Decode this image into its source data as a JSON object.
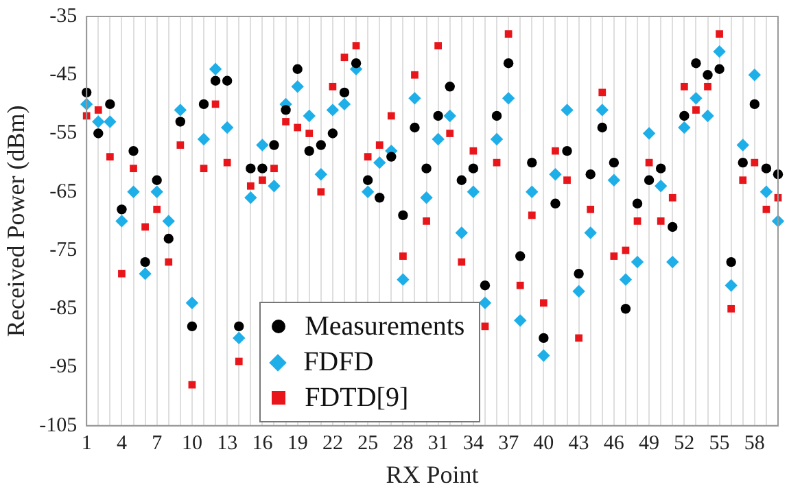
{
  "chart_data": {
    "type": "scatter",
    "xlabel": "RX Point",
    "ylabel": "Received Power (dBm)",
    "x": [
      1,
      2,
      3,
      4,
      5,
      6,
      7,
      8,
      9,
      10,
      11,
      12,
      13,
      14,
      15,
      16,
      17,
      18,
      19,
      20,
      21,
      22,
      23,
      24,
      25,
      26,
      27,
      28,
      29,
      30,
      31,
      32,
      33,
      34,
      35,
      36,
      37,
      38,
      39,
      40,
      41,
      42,
      43,
      44,
      45,
      46,
      47,
      48,
      49,
      50,
      51,
      52,
      53,
      54,
      55,
      56,
      57,
      58,
      59,
      60
    ],
    "series": [
      {
        "name": "Measurements",
        "color": "#000000",
        "marker": "circle",
        "values": [
          -48,
          -55,
          -50,
          -68,
          -58,
          -77,
          -63,
          -73,
          -53,
          -88,
          -50,
          -46,
          -46,
          -88,
          -61,
          -61,
          -57,
          -51,
          -44,
          -58,
          -57,
          -55,
          -48,
          -43,
          -63,
          -66,
          -59,
          -69,
          -54,
          -61,
          -52,
          -47,
          -63,
          -61,
          -81,
          -52,
          -43,
          -76,
          -60,
          -90,
          -67,
          -58,
          -79,
          -62,
          -54,
          -60,
          -85,
          -67,
          -63,
          -61,
          -71,
          -52,
          -43,
          -45,
          -44,
          -77,
          -60,
          -50,
          -61,
          -62
        ]
      },
      {
        "name": "FDFD",
        "color": "#1eaee8",
        "marker": "diamond",
        "values": [
          -50,
          -53,
          -53,
          -70,
          -65,
          -79,
          -65,
          -70,
          -51,
          -84,
          -56,
          -44,
          -54,
          -90,
          -66,
          -57,
          -64,
          -50,
          -47,
          -52,
          -62,
          -51,
          -50,
          -44,
          -65,
          -60,
          -58,
          -80,
          -49,
          -66,
          -56,
          -52,
          -72,
          -65,
          -84,
          -56,
          -49,
          -87,
          -65,
          -93,
          -62,
          -51,
          -82,
          -72,
          -51,
          -63,
          -80,
          -77,
          -55,
          -64,
          -77,
          -54,
          -49,
          -52,
          -41,
          -81,
          -57,
          -45,
          -65,
          -70
        ]
      },
      {
        "name": "FDTD[9]",
        "color": "#e8161b",
        "marker": "square",
        "values": [
          -52,
          -51,
          -59,
          -79,
          -61,
          -71,
          -68,
          -77,
          -57,
          -98,
          -61,
          -50,
          -60,
          -94,
          -64,
          -63,
          -61,
          -53,
          -54,
          -55,
          -65,
          -47,
          -42,
          -40,
          -59,
          -57,
          -52,
          -76,
          -45,
          -70,
          -40,
          -55,
          -77,
          -58,
          -88,
          -60,
          -38,
          -81,
          -69,
          -84,
          -58,
          -63,
          -90,
          -68,
          -48,
          -76,
          -75,
          -70,
          -60,
          -70,
          -66,
          -47,
          -51,
          -47,
          -38,
          -85,
          -63,
          -60,
          -68,
          -66
        ]
      }
    ],
    "xlim": [
      1,
      60
    ],
    "xticks": [
      1,
      {
        "value": 2,
        "label": null
      },
      {
        "value": 3,
        "label": null
      },
      4,
      {
        "value": 5,
        "label": null
      },
      {
        "value": 6,
        "label": null
      },
      7,
      {
        "value": 8,
        "label": null
      },
      {
        "value": 9,
        "label": null
      },
      10,
      {
        "value": 11,
        "label": null
      },
      {
        "value": 12,
        "label": null
      },
      13,
      {
        "value": 14,
        "label": null
      },
      {
        "value": 15,
        "label": null
      },
      16,
      {
        "value": 17,
        "label": null
      },
      {
        "value": 18,
        "label": null
      },
      19,
      {
        "value": 20,
        "label": null
      },
      {
        "value": 21,
        "label": null
      },
      22,
      {
        "value": 23,
        "label": null
      },
      {
        "value": 24,
        "label": null
      },
      25,
      {
        "value": 26,
        "label": null
      },
      {
        "value": 27,
        "label": null
      },
      28,
      {
        "value": 29,
        "label": null
      },
      {
        "value": 30,
        "label": null
      },
      31,
      {
        "value": 32,
        "label": null
      },
      {
        "value": 33,
        "label": null
      },
      34,
      {
        "value": 35,
        "label": null
      },
      {
        "value": 36,
        "label": null
      },
      37,
      {
        "value": 38,
        "label": null
      },
      {
        "value": 39,
        "label": null
      },
      40,
      {
        "value": 41,
        "label": null
      },
      {
        "value": 42,
        "label": null
      },
      43,
      {
        "value": 44,
        "label": null
      },
      {
        "value": 45,
        "label": null
      },
      46,
      {
        "value": 47,
        "label": null
      },
      {
        "value": 48,
        "label": null
      },
      49,
      {
        "value": 50,
        "label": null
      },
      {
        "value": 51,
        "label": null
      },
      52,
      {
        "value": 53,
        "label": null
      },
      {
        "value": 54,
        "label": null
      },
      55,
      {
        "value": 56,
        "label": null
      },
      {
        "value": 57,
        "label": null
      },
      58,
      {
        "value": 59,
        "label": null
      },
      {
        "value": 60,
        "label": null
      }
    ],
    "ylim": [
      -105,
      -35
    ],
    "yticks": [
      -105,
      -95,
      -85,
      -75,
      -65,
      -55,
      -45,
      -35
    ],
    "grid": "x",
    "legend": "bottom"
  }
}
